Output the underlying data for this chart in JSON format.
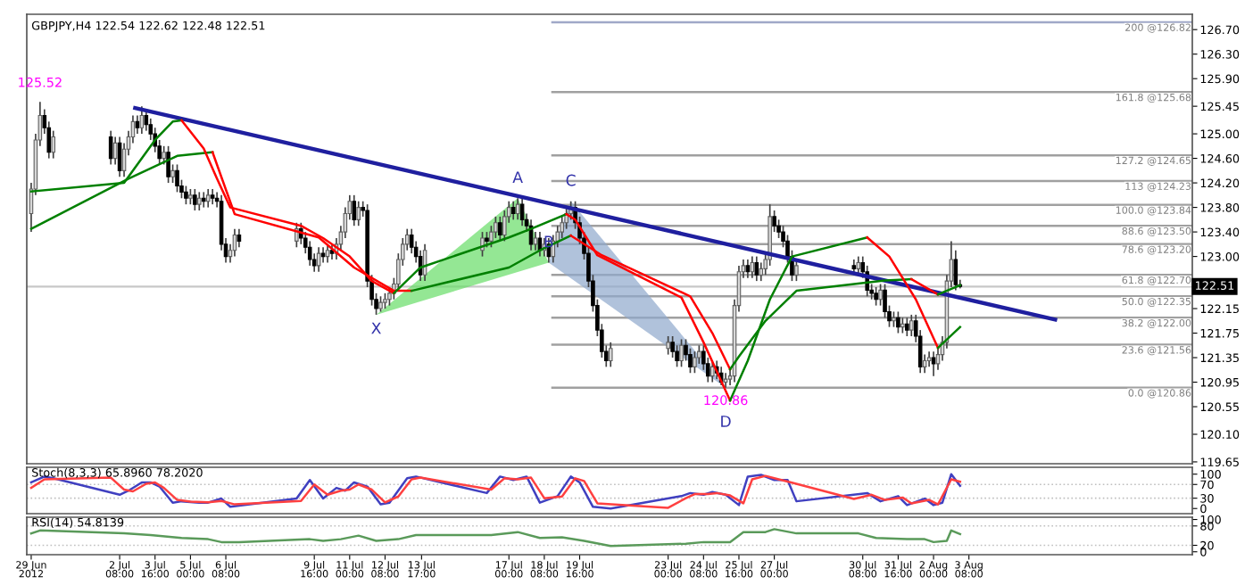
{
  "chart_data": [
    {
      "type": "candlestick",
      "title": "GBPJPY,H4 122.54 122.62 122.48 122.51",
      "x": [
        "2012-06-29T00:00",
        "2012-06-29T04:00",
        "2012-06-29T08:00",
        "2012-06-29T12:00",
        "2012-06-29T16:00",
        "2012-06-29T20:00",
        "2012-07-02T00:00",
        "2012-07-02T04:00",
        "2012-07-02T08:00",
        "2012-07-02T12:00",
        "2012-07-02T16:00",
        "2012-07-02T20:00",
        "2012-07-03T00:00",
        "2012-07-03T04:00",
        "2012-07-03T08:00",
        "2012-07-03T12:00",
        "2012-07-03T16:00",
        "2012-07-03T20:00",
        "2012-07-04T00:00",
        "2012-07-04T04:00",
        "2012-07-04T08:00",
        "2012-07-04T12:00",
        "2012-07-04T16:00",
        "2012-07-04T20:00",
        "2012-07-05T00:00",
        "2012-07-05T04:00",
        "2012-07-05T08:00",
        "2012-07-05T12:00",
        "2012-07-05T16:00",
        "2012-07-05T20:00",
        "2012-07-06T00:00",
        "2012-07-06T04:00",
        "2012-07-06T08:00",
        "2012-07-06T12:00",
        "2012-07-06T16:00",
        "2012-07-06T20:00",
        "2012-07-09T00:00",
        "2012-07-09T04:00",
        "2012-07-09T08:00",
        "2012-07-09T12:00",
        "2012-07-09T16:00",
        "2012-07-09T20:00",
        "2012-07-10T00:00",
        "2012-07-10T04:00",
        "2012-07-10T08:00",
        "2012-07-10T12:00",
        "2012-07-10T16:00",
        "2012-07-10T20:00",
        "2012-07-11T00:00",
        "2012-07-11T04:00",
        "2012-07-11T08:00",
        "2012-07-11T12:00",
        "2012-07-11T16:00",
        "2012-07-11T20:00",
        "2012-07-12T00:00",
        "2012-07-12T04:00",
        "2012-07-12T08:00",
        "2012-07-12T12:00",
        "2012-07-12T16:00",
        "2012-07-12T20:00",
        "2012-07-13T00:00",
        "2012-07-13T04:00",
        "2012-07-13T08:00",
        "2012-07-13T12:00",
        "2012-07-13T16:00",
        "2012-07-13T20:00",
        "2012-07-16T00:00",
        "2012-07-16T04:00",
        "2012-07-16T08:00",
        "2012-07-16T12:00",
        "2012-07-16T16:00",
        "2012-07-16T20:00",
        "2012-07-17T00:00",
        "2012-07-17T04:00",
        "2012-07-17T08:00",
        "2012-07-17T12:00",
        "2012-07-17T16:00",
        "2012-07-17T20:00",
        "2012-07-18T00:00",
        "2012-07-18T04:00",
        "2012-07-18T08:00",
        "2012-07-18T12:00",
        "2012-07-18T16:00",
        "2012-07-18T20:00",
        "2012-07-19T00:00",
        "2012-07-19T04:00",
        "2012-07-19T08:00",
        "2012-07-19T12:00",
        "2012-07-19T16:00",
        "2012-07-19T20:00",
        "2012-07-20T00:00",
        "2012-07-20T04:00",
        "2012-07-20T08:00",
        "2012-07-20T12:00",
        "2012-07-20T16:00",
        "2012-07-20T20:00",
        "2012-07-23T00:00",
        "2012-07-23T04:00",
        "2012-07-23T08:00",
        "2012-07-23T12:00",
        "2012-07-23T16:00",
        "2012-07-23T20:00",
        "2012-07-24T00:00",
        "2012-07-24T04:00",
        "2012-07-24T08:00",
        "2012-07-24T12:00",
        "2012-07-24T16:00",
        "2012-07-24T20:00",
        "2012-07-25T00:00",
        "2012-07-25T04:00",
        "2012-07-25T08:00",
        "2012-07-25T12:00",
        "2012-07-25T16:00",
        "2012-07-25T20:00",
        "2012-07-26T00:00",
        "2012-07-26T04:00",
        "2012-07-26T08:00",
        "2012-07-26T12:00",
        "2012-07-26T16:00",
        "2012-07-26T20:00",
        "2012-07-27T00:00",
        "2012-07-27T04:00",
        "2012-07-27T08:00",
        "2012-07-27T12:00",
        "2012-07-27T16:00",
        "2012-07-27T20:00",
        "2012-07-30T00:00",
        "2012-07-30T04:00",
        "2012-07-30T08:00",
        "2012-07-30T12:00",
        "2012-07-30T16:00",
        "2012-07-30T20:00",
        "2012-07-31T00:00",
        "2012-07-31T04:00",
        "2012-07-31T08:00",
        "2012-07-31T12:00",
        "2012-07-31T16:00",
        "2012-07-31T20:00",
        "2012-08-01T00:00",
        "2012-08-01T04:00",
        "2012-08-01T08:00",
        "2012-08-01T12:00",
        "2012-08-01T16:00",
        "2012-08-01T20:00",
        "2012-08-02T00:00",
        "2012-08-02T04:00",
        "2012-08-02T08:00",
        "2012-08-02T12:00",
        "2012-08-02T16:00",
        "2012-08-02T20:00",
        "2012-08-03T00:00"
      ],
      "ohlc": [
        [
          123.7,
          124.2,
          123.4,
          124.1
        ],
        [
          124.1,
          125.0,
          124.0,
          124.9
        ],
        [
          124.9,
          125.52,
          124.8,
          125.3
        ],
        [
          125.3,
          125.4,
          125.0,
          125.1
        ],
        [
          125.1,
          125.2,
          124.6,
          124.7
        ],
        [
          124.7,
          125.05,
          124.6,
          124.95
        ],
        [
          124.95,
          125.05,
          124.5,
          124.6
        ],
        [
          124.6,
          124.95,
          124.5,
          124.85
        ],
        [
          124.85,
          124.95,
          124.3,
          124.4
        ],
        [
          124.4,
          124.85,
          124.3,
          124.75
        ],
        [
          124.75,
          125.05,
          124.65,
          124.95
        ],
        [
          124.95,
          125.3,
          124.85,
          125.2
        ],
        [
          125.2,
          125.3,
          125.0,
          125.1
        ],
        [
          125.1,
          125.45,
          125.0,
          125.3
        ],
        [
          125.3,
          125.4,
          125.05,
          125.15
        ],
        [
          125.15,
          125.25,
          124.9,
          125.0
        ],
        [
          125.0,
          125.1,
          124.7,
          124.8
        ],
        [
          124.8,
          124.9,
          124.5,
          124.6
        ],
        [
          124.6,
          124.8,
          124.5,
          124.7
        ],
        [
          124.7,
          124.8,
          124.2,
          124.3
        ],
        [
          124.3,
          124.5,
          124.2,
          124.4
        ],
        [
          124.4,
          124.5,
          124.05,
          124.15
        ],
        [
          124.15,
          124.25,
          123.95,
          124.05
        ],
        [
          124.05,
          124.15,
          123.85,
          123.95
        ],
        [
          123.95,
          124.1,
          123.85,
          124.0
        ],
        [
          124.0,
          124.1,
          123.75,
          123.85
        ],
        [
          123.85,
          124.05,
          123.75,
          123.95
        ],
        [
          123.95,
          124.05,
          123.8,
          123.9
        ],
        [
          123.9,
          124.1,
          123.8,
          124.0
        ],
        [
          124.0,
          124.1,
          123.85,
          123.95
        ],
        [
          123.95,
          124.05,
          123.8,
          123.9
        ],
        [
          123.9,
          124.0,
          123.1,
          123.2
        ],
        [
          123.2,
          123.3,
          122.9,
          123.0
        ],
        [
          123.0,
          123.2,
          122.9,
          123.1
        ],
        [
          123.1,
          123.45,
          123.0,
          123.35
        ],
        [
          123.35,
          123.45,
          123.15,
          123.25
        ],
        [
          123.25,
          123.55,
          123.15,
          123.45
        ],
        [
          123.45,
          123.55,
          123.2,
          123.3
        ],
        [
          123.3,
          123.4,
          123.05,
          123.15
        ],
        [
          123.15,
          123.25,
          122.85,
          122.95
        ],
        [
          122.95,
          123.05,
          122.75,
          122.85
        ],
        [
          122.85,
          123.15,
          122.75,
          123.05
        ],
        [
          123.05,
          123.15,
          122.9,
          123.0
        ],
        [
          123.0,
          123.2,
          122.9,
          123.1
        ],
        [
          123.1,
          123.2,
          122.95,
          123.05
        ],
        [
          123.05,
          123.3,
          122.95,
          123.2
        ],
        [
          123.2,
          123.5,
          123.1,
          123.4
        ],
        [
          123.4,
          123.8,
          123.3,
          123.7
        ],
        [
          123.7,
          124.0,
          123.6,
          123.9
        ],
        [
          123.9,
          124.0,
          123.5,
          123.6
        ],
        [
          123.6,
          123.9,
          123.5,
          123.8
        ],
        [
          123.8,
          123.9,
          123.65,
          123.75
        ],
        [
          123.75,
          123.85,
          122.5,
          122.6
        ],
        [
          122.6,
          122.7,
          122.2,
          122.3
        ],
        [
          122.3,
          122.4,
          122.05,
          122.15
        ],
        [
          122.15,
          122.35,
          122.1,
          122.25
        ],
        [
          122.25,
          122.4,
          122.15,
          122.3
        ],
        [
          122.3,
          122.5,
          122.2,
          122.4
        ],
        [
          122.4,
          122.65,
          122.3,
          122.55
        ],
        [
          122.55,
          123.05,
          122.45,
          122.95
        ],
        [
          122.95,
          123.3,
          122.85,
          123.2
        ],
        [
          123.2,
          123.45,
          123.1,
          123.35
        ],
        [
          123.35,
          123.45,
          123.05,
          123.15
        ],
        [
          123.15,
          123.25,
          122.9,
          123.0
        ],
        [
          123.0,
          123.1,
          122.6,
          122.7
        ],
        [
          122.7,
          123.2,
          122.6,
          123.1
        ],
        [
          123.1,
          123.4,
          123.0,
          123.3
        ],
        [
          123.3,
          123.4,
          123.15,
          123.25
        ],
        [
          123.25,
          123.5,
          123.15,
          123.4
        ],
        [
          123.4,
          123.65,
          123.3,
          123.55
        ],
        [
          123.55,
          123.65,
          123.25,
          123.35
        ],
        [
          123.35,
          123.75,
          123.25,
          123.65
        ],
        [
          123.65,
          123.9,
          123.55,
          123.8
        ],
        [
          123.8,
          123.9,
          123.6,
          123.7
        ],
        [
          123.7,
          123.95,
          123.6,
          123.85
        ],
        [
          123.85,
          123.95,
          123.5,
          123.6
        ],
        [
          123.6,
          123.7,
          123.4,
          123.5
        ],
        [
          123.5,
          123.6,
          123.1,
          123.2
        ],
        [
          123.2,
          123.4,
          123.1,
          123.3
        ],
        [
          123.3,
          123.4,
          123.0,
          123.1
        ],
        [
          123.1,
          123.3,
          123.0,
          123.2
        ],
        [
          123.2,
          123.3,
          122.9,
          123.0
        ],
        [
          123.0,
          123.35,
          122.9,
          123.25
        ],
        [
          123.25,
          123.5,
          123.15,
          123.4
        ],
        [
          123.4,
          123.65,
          123.3,
          123.55
        ],
        [
          123.55,
          123.8,
          123.45,
          123.7
        ],
        [
          123.7,
          123.9,
          123.6,
          123.8
        ],
        [
          123.8,
          123.9,
          123.45,
          123.55
        ],
        [
          123.55,
          123.65,
          123.2,
          123.3
        ],
        [
          123.3,
          123.4,
          122.95,
          123.05
        ],
        [
          123.05,
          123.15,
          122.5,
          122.6
        ],
        [
          122.6,
          122.7,
          122.1,
          122.2
        ],
        [
          122.2,
          122.3,
          121.7,
          121.8
        ],
        [
          121.8,
          121.9,
          121.35,
          121.45
        ],
        [
          121.45,
          121.55,
          121.2,
          121.3
        ],
        [
          121.3,
          121.6,
          121.2,
          121.5
        ],
        [
          121.5,
          121.7,
          121.4,
          121.6
        ],
        [
          121.6,
          121.7,
          121.35,
          121.45
        ],
        [
          121.45,
          121.55,
          121.2,
          121.3
        ],
        [
          121.3,
          121.65,
          121.2,
          121.55
        ],
        [
          121.55,
          121.65,
          121.3,
          121.4
        ],
        [
          121.4,
          121.5,
          121.1,
          121.2
        ],
        [
          121.2,
          121.45,
          121.1,
          121.35
        ],
        [
          121.35,
          121.55,
          121.25,
          121.45
        ],
        [
          121.45,
          121.55,
          121.15,
          121.25
        ],
        [
          121.25,
          121.35,
          120.95,
          121.05
        ],
        [
          121.05,
          121.3,
          120.95,
          121.2
        ],
        [
          121.2,
          121.3,
          121.0,
          121.1
        ],
        [
          121.1,
          121.2,
          120.9,
          120.95
        ],
        [
          120.95,
          121.1,
          120.86,
          121.0
        ],
        [
          121.0,
          121.15,
          120.9,
          121.05
        ],
        [
          121.05,
          122.3,
          120.95,
          122.2
        ],
        [
          122.2,
          122.85,
          122.1,
          122.75
        ],
        [
          122.75,
          122.95,
          122.65,
          122.85
        ],
        [
          122.85,
          122.95,
          122.65,
          122.75
        ],
        [
          122.75,
          123.0,
          122.65,
          122.9
        ],
        [
          122.9,
          123.0,
          122.6,
          122.7
        ],
        [
          122.7,
          122.9,
          122.6,
          122.8
        ],
        [
          122.8,
          123.05,
          122.7,
          122.95
        ],
        [
          122.95,
          123.85,
          122.85,
          123.65
        ],
        [
          123.65,
          123.75,
          123.4,
          123.5
        ],
        [
          123.5,
          123.6,
          123.3,
          123.4
        ],
        [
          123.4,
          123.5,
          123.15,
          123.25
        ],
        [
          123.25,
          123.35,
          122.9,
          123.0
        ],
        [
          123.0,
          123.1,
          122.6,
          122.7
        ],
        [
          122.7,
          122.95,
          122.6,
          122.85
        ],
        [
          122.85,
          122.95,
          122.7,
          122.8
        ],
        [
          122.8,
          123.0,
          122.7,
          122.9
        ],
        [
          122.9,
          123.0,
          122.65,
          122.75
        ],
        [
          122.75,
          122.85,
          122.35,
          122.45
        ],
        [
          122.45,
          122.55,
          122.3,
          122.4
        ],
        [
          122.4,
          122.5,
          122.2,
          122.3
        ],
        [
          122.3,
          122.55,
          122.2,
          122.45
        ],
        [
          122.45,
          122.55,
          122.0,
          122.1
        ],
        [
          122.1,
          122.2,
          121.85,
          121.95
        ],
        [
          121.95,
          122.1,
          121.85,
          122.0
        ],
        [
          122.0,
          122.1,
          121.75,
          121.85
        ],
        [
          121.85,
          122.0,
          121.75,
          121.9
        ],
        [
          121.9,
          122.0,
          121.7,
          121.8
        ],
        [
          121.8,
          122.05,
          121.7,
          121.95
        ],
        [
          121.95,
          122.05,
          121.6,
          121.7
        ],
        [
          121.7,
          121.8,
          121.1,
          121.2
        ],
        [
          121.2,
          121.4,
          121.1,
          121.3
        ],
        [
          121.3,
          121.45,
          121.2,
          121.35
        ],
        [
          121.35,
          121.45,
          121.05,
          121.25
        ],
        [
          121.25,
          121.5,
          121.15,
          121.4
        ],
        [
          121.4,
          121.7,
          121.3,
          121.6
        ],
        [
          121.6,
          122.7,
          121.5,
          122.6
        ],
        [
          122.6,
          123.25,
          122.5,
          122.95
        ],
        [
          122.95,
          123.1,
          122.45,
          122.54
        ],
        [
          122.54,
          122.62,
          122.48,
          122.51
        ]
      ],
      "series": [
        {
          "type": "line",
          "color": "#1f1f9f",
          "x": [
            "2012-07-02T22:00",
            "2012-08-06T14:00"
          ],
          "values": [
            125.42,
            121.97
          ]
        },
        {
          "type": "line",
          "color": "#008000",
          "x": [
            "2012-06-29T00:00",
            "2012-07-02T16:00",
            "2012-07-04T12:00",
            "2012-07-05T20:00"
          ],
          "values": [
            123.45,
            124.27,
            124.64,
            124.7
          ]
        },
        {
          "type": "line",
          "color": "#ff0000",
          "x": [
            "2012-07-05T20:00",
            "2012-07-06T16:00",
            "2012-07-09T20:00",
            "2012-07-11T04:00",
            "2012-07-12T16:00",
            "2012-07-13T08:00"
          ],
          "values": [
            124.7,
            123.69,
            123.31,
            122.82,
            122.44,
            122.44
          ]
        },
        {
          "type": "line",
          "color": "#008000",
          "x": [
            "2012-07-13T08:00",
            "2012-07-17T00:00",
            "2012-07-18T04:00",
            "2012-07-19T08:00"
          ],
          "values": [
            122.44,
            122.82,
            123.1,
            123.34
          ]
        },
        {
          "type": "line",
          "color": "#ff0000",
          "x": [
            "2012-07-19T08:00",
            "2012-07-20T12:00",
            "2012-07-23T20:00",
            "2012-07-24T16:00",
            "2012-07-25T08:00"
          ],
          "values": [
            123.34,
            123.02,
            122.35,
            121.75,
            121.16
          ]
        },
        {
          "type": "line",
          "color": "#008000",
          "x": [
            "2012-07-25T08:00",
            "2012-07-25T16:00",
            "2012-07-26T16:00",
            "2012-07-27T20:00",
            "2012-07-31T04:00",
            "2012-08-01T04:00"
          ],
          "values": [
            121.16,
            121.37,
            121.95,
            122.44,
            122.61,
            122.63
          ]
        },
        {
          "type": "line",
          "color": "#ff0000",
          "x": [
            "2012-08-01T04:00",
            "2012-08-02T04:00"
          ],
          "values": [
            122.63,
            122.38
          ]
        },
        {
          "type": "line",
          "color": "#008000",
          "x": [
            "2012-08-02T04:00",
            "2012-08-03T00:00"
          ],
          "values": [
            122.38,
            122.53
          ]
        },
        {
          "type": "line",
          "color": "#008000",
          "x": [
            "2012-06-29T00:00",
            "2012-07-02T12:00",
            "2012-07-03T16:00",
            "2012-07-04T08:00",
            "2012-07-04T16:00"
          ],
          "values": [
            124.06,
            124.2,
            124.9,
            125.2,
            125.22
          ]
        },
        {
          "type": "line",
          "color": "#ff0000",
          "x": [
            "2012-07-04T16:00",
            "2012-07-05T12:00",
            "2012-07-06T00:00",
            "2012-07-06T12:00",
            "2012-07-09T04:00",
            "2012-07-10T00:00",
            "2012-07-11T00:00",
            "2012-07-11T20:00",
            "2012-07-12T16:00"
          ],
          "values": [
            125.22,
            124.76,
            124.27,
            123.8,
            123.5,
            123.3,
            123.0,
            122.6,
            122.4
          ]
        },
        {
          "type": "line",
          "color": "#008000",
          "x": [
            "2012-07-12T16:00",
            "2012-07-13T16:00",
            "2012-07-17T00:00",
            "2012-07-17T20:00",
            "2012-07-19T04:00"
          ],
          "values": [
            122.4,
            122.82,
            123.31,
            123.45,
            123.69
          ]
        },
        {
          "type": "line",
          "color": "#ff0000",
          "x": [
            "2012-07-19T04:00",
            "2012-07-19T12:00",
            "2012-07-20T08:00",
            "2012-07-23T12:00",
            "2012-07-24T08:00",
            "2012-07-25T08:00"
          ],
          "values": [
            123.69,
            123.6,
            123.02,
            122.33,
            121.6,
            120.65
          ]
        },
        {
          "type": "line",
          "color": "#008000",
          "x": [
            "2012-07-25T08:00",
            "2012-07-26T00:00",
            "2012-07-26T20:00",
            "2012-07-27T16:00",
            "2012-07-30T12:00"
          ],
          "values": [
            120.65,
            121.3,
            122.3,
            123.0,
            123.31
          ]
        },
        {
          "type": "line",
          "color": "#ff0000",
          "x": [
            "2012-07-30T12:00",
            "2012-07-31T08:00",
            "2012-08-01T08:00",
            "2012-08-02T04:00"
          ],
          "values": [
            123.31,
            123.0,
            122.3,
            121.51
          ]
        },
        {
          "type": "line",
          "color": "#008000",
          "x": [
            "2012-08-02T04:00",
            "2012-08-03T00:00"
          ],
          "values": [
            121.51,
            121.85
          ]
        }
      ],
      "annotations": [
        {
          "text": "125.52",
          "x": "2012-06-29T08:00",
          "y": 125.52
        },
        {
          "text": "120.86",
          "x": "2012-07-25T04:00",
          "y": 120.86
        },
        {
          "text": "X",
          "x": "2012-07-12T00:00",
          "y": 122.05
        },
        {
          "text": "A",
          "x": "2012-07-17T08:00",
          "y": 123.95
        },
        {
          "text": "B",
          "x": "2012-07-18T12:00",
          "y": 122.9
        },
        {
          "text": "C",
          "x": "2012-07-19T08:00",
          "y": 123.9
        },
        {
          "text": "D",
          "x": "2012-07-25T04:00",
          "y": 120.86
        }
      ],
      "ref_lines": [
        {
          "axis": "y",
          "value": 126.82,
          "label": "200 @126.82",
          "color": "#a0a8c8"
        },
        {
          "axis": "y",
          "value": 125.68,
          "label": "161.8 @125.68",
          "color": "#a0a0a0"
        },
        {
          "axis": "y",
          "value": 124.65,
          "label": "127.2 @124.65",
          "color": "#a0a0a0"
        },
        {
          "axis": "y",
          "value": 124.23,
          "label": "113 @124.23",
          "color": "#a0a0a0"
        },
        {
          "axis": "y",
          "value": 123.84,
          "label": "100.0 @123.84",
          "color": "#a0a0a0"
        },
        {
          "axis": "y",
          "value": 123.5,
          "label": "88.6 @123.50",
          "color": "#a0a0a0"
        },
        {
          "axis": "y",
          "value": 123.2,
          "label": "78.6 @123.20",
          "color": "#a0a0a0"
        },
        {
          "axis": "y",
          "value": 122.7,
          "label": "61.8 @122.70",
          "color": "#a0a0a0"
        },
        {
          "axis": "y",
          "value": 122.35,
          "label": "50.0 @122.35",
          "color": "#a0a0a0"
        },
        {
          "axis": "y",
          "value": 122.0,
          "label": "38.2 @122.00",
          "color": "#a0a0a0"
        },
        {
          "axis": "y",
          "value": 121.56,
          "label": "23.6 @121.56",
          "color": "#a0a0a0"
        },
        {
          "axis": "y",
          "value": 120.86,
          "label": "0.0 @120.86",
          "color": "#a0a0a0"
        },
        {
          "axis": "y",
          "value": 122.51,
          "label": "122.51",
          "color": "#c8c8c8"
        }
      ],
      "xlim": [
        "2012-06-28T20:00",
        "2012-08-11T18:00"
      ],
      "ylim": [
        119.62,
        126.95
      ],
      "yticks": [
        {
          "value": 119.65,
          "label": "119.65"
        },
        {
          "value": 120.1,
          "label": "120.10"
        },
        {
          "value": 120.55,
          "label": "120.55"
        },
        {
          "value": 120.95,
          "label": "120.95"
        },
        {
          "value": 121.35,
          "label": "121.35"
        },
        {
          "value": 121.75,
          "label": "121.75"
        },
        {
          "value": 122.15,
          "label": "122.15"
        },
        {
          "value": 123.0,
          "label": "123.00"
        },
        {
          "value": 123.4,
          "label": "123.40"
        },
        {
          "value": 123.8,
          "label": "123.80"
        },
        {
          "value": 124.2,
          "label": "124.20"
        },
        {
          "value": 124.6,
          "label": "124.60"
        },
        {
          "value": 125.0,
          "label": "125.00"
        },
        {
          "value": 125.45,
          "label": "125.45"
        },
        {
          "value": 125.9,
          "label": "125.90"
        },
        {
          "value": 126.3,
          "label": "126.30"
        },
        {
          "value": 126.7,
          "label": "126.70"
        }
      ],
      "tick_labels": "y"
    },
    {
      "type": "line",
      "title": "Stoch(8,3,3) 65.8960 78.2020",
      "series": [
        {
          "color": "#4040c0",
          "x": [
            "2012-06-29T00:00",
            "2012-06-29T12:00",
            "2012-06-29T20:00",
            "2012-07-02T08:00",
            "2012-07-02T16:00",
            "2012-07-03T04:00",
            "2012-07-03T12:00",
            "2012-07-03T20:00",
            "2012-07-04T08:00",
            "2012-07-04T16:00",
            "2012-07-05T08:00",
            "2012-07-05T16:00",
            "2012-07-06T04:00",
            "2012-07-06T12:00",
            "2012-07-09T00:00",
            "2012-07-09T12:00",
            "2012-07-10T00:00",
            "2012-07-10T12:00",
            "2012-07-10T20:00",
            "2012-07-11T04:00",
            "2012-07-11T16:00",
            "2012-07-12T04:00",
            "2012-07-12T12:00",
            "2012-07-13T04:00",
            "2012-07-13T12:00",
            "2012-07-16T04:00",
            "2012-07-16T16:00",
            "2012-07-17T04:00",
            "2012-07-17T16:00",
            "2012-07-18T04:00",
            "2012-07-18T20:00",
            "2012-07-19T08:00",
            "2012-07-19T16:00",
            "2012-07-20T04:00",
            "2012-07-20T20:00",
            "2012-07-23T12:00",
            "2012-07-23T20:00",
            "2012-07-24T08:00",
            "2012-07-24T16:00",
            "2012-07-25T04:00",
            "2012-07-25T16:00",
            "2012-07-26T00:00",
            "2012-07-26T12:00",
            "2012-07-27T00:00",
            "2012-07-27T12:00",
            "2012-07-27T20:00",
            "2012-07-30T12:00",
            "2012-07-31T00:00",
            "2012-07-31T16:00",
            "2012-08-01T00:00",
            "2012-08-01T16:00",
            "2012-08-02T00:00",
            "2012-08-02T08:00",
            "2012-08-02T16:00",
            "2012-08-03T00:00"
          ],
          "values": [
            76,
            93,
            88,
            40,
            52,
            76,
            76,
            64,
            17,
            21,
            17,
            17,
            29,
            5,
            29,
            83,
            29,
            60,
            52,
            76,
            64,
            12,
            17,
            88,
            93,
            45,
            93,
            83,
            93,
            17,
            36,
            93,
            76,
            5,
            0,
            36,
            45,
            40,
            48,
            40,
            10,
            93,
            98,
            83,
            83,
            21,
            45,
            21,
            36,
            10,
            29,
            10,
            17,
            100,
            66
          ]
        },
        {
          "color": "#ff4040",
          "x": [
            "2012-06-29T00:00",
            "2012-06-29T12:00",
            "2012-07-02T00:00",
            "2012-07-02T12:00",
            "2012-07-02T20:00",
            "2012-07-03T08:00",
            "2012-07-03T16:00",
            "2012-07-04T00:00",
            "2012-07-04T12:00",
            "2012-07-05T00:00",
            "2012-07-05T16:00",
            "2012-07-06T04:00",
            "2012-07-06T16:00",
            "2012-07-09T04:00",
            "2012-07-09T16:00",
            "2012-07-10T04:00",
            "2012-07-10T16:00",
            "2012-07-11T00:00",
            "2012-07-11T08:00",
            "2012-07-11T20:00",
            "2012-07-12T08:00",
            "2012-07-12T20:00",
            "2012-07-13T08:00",
            "2012-07-13T16:00",
            "2012-07-16T08:00",
            "2012-07-16T20:00",
            "2012-07-17T08:00",
            "2012-07-17T20:00",
            "2012-07-18T08:00",
            "2012-07-19T00:00",
            "2012-07-19T12:00",
            "2012-07-19T20:00",
            "2012-07-20T08:00",
            "2012-07-23T00:00",
            "2012-07-23T16:00",
            "2012-07-24T00:00",
            "2012-07-24T12:00",
            "2012-07-24T20:00",
            "2012-07-25T08:00",
            "2012-07-25T20:00",
            "2012-07-26T04:00",
            "2012-07-26T16:00",
            "2012-07-27T04:00",
            "2012-07-27T16:00",
            "2012-07-30T00:00",
            "2012-07-30T16:00",
            "2012-07-31T04:00",
            "2012-07-31T20:00",
            "2012-08-01T04:00",
            "2012-08-01T20:00",
            "2012-08-02T04:00",
            "2012-08-02T16:00",
            "2012-08-03T00:00"
          ],
          "values": [
            60,
            85,
            90,
            55,
            50,
            72,
            76,
            60,
            25,
            20,
            18,
            22,
            12,
            22,
            70,
            40,
            52,
            55,
            70,
            55,
            18,
            35,
            85,
            90,
            55,
            88,
            85,
            90,
            30,
            35,
            88,
            80,
            15,
            2,
            30,
            42,
            42,
            45,
            38,
            15,
            85,
            95,
            85,
            75,
            28,
            40,
            25,
            32,
            15,
            25,
            12,
            85,
            78
          ]
        }
      ],
      "ref_lines": [
        {
          "axis": "y",
          "value": 70,
          "color": "#c0c0c0",
          "line_style": "dotted"
        },
        {
          "axis": "y",
          "value": 30,
          "color": "#c0c0c0",
          "line_style": "dotted"
        }
      ],
      "xlim": [
        "2012-06-28T20:00",
        "2012-08-11T18:00"
      ],
      "ylim": [
        -15,
        120
      ],
      "yticks": [
        0,
        30,
        70,
        100
      ],
      "tick_labels": "y"
    },
    {
      "type": "line",
      "title": "RSI(14) 54.8139",
      "series": [
        {
          "color": "#5a9a5a",
          "x": [
            "2012-06-29T00:00",
            "2012-06-29T08:00",
            "2012-07-02T12:00",
            "2012-07-03T12:00",
            "2012-07-04T16:00",
            "2012-07-05T16:00",
            "2012-07-06T04:00",
            "2012-07-06T20:00",
            "2012-07-09T12:00",
            "2012-07-10T00:00",
            "2012-07-10T16:00",
            "2012-07-11T08:00",
            "2012-07-12T00:00",
            "2012-07-12T20:00",
            "2012-07-13T12:00",
            "2012-07-16T08:00",
            "2012-07-17T08:00",
            "2012-07-18T04:00",
            "2012-07-19T00:00",
            "2012-07-19T20:00",
            "2012-07-20T20:00",
            "2012-07-23T16:00",
            "2012-07-24T08:00",
            "2012-07-25T00:00",
            "2012-07-25T08:00",
            "2012-07-25T20:00",
            "2012-07-26T16:00",
            "2012-07-27T00:00",
            "2012-07-27T20:00",
            "2012-07-30T04:00",
            "2012-07-30T20:00",
            "2012-08-01T00:00",
            "2012-08-01T16:00",
            "2012-08-02T00:00",
            "2012-08-02T12:00",
            "2012-08-02T16:00",
            "2012-08-03T00:00"
          ],
          "values": [
            57,
            66,
            57,
            52,
            43,
            39,
            30,
            30,
            39,
            34,
            39,
            50,
            34,
            39,
            52,
            52,
            61,
            43,
            45,
            34,
            18,
            25,
            30,
            30,
            30,
            61,
            61,
            70,
            57,
            57,
            43,
            39,
            39,
            30,
            34,
            66,
            55
          ]
        }
      ],
      "ref_lines": [
        {
          "axis": "y",
          "value": 80,
          "color": "#c0c0c0",
          "line_style": "dotted"
        },
        {
          "axis": "y",
          "value": 20,
          "color": "#c0c0c0",
          "line_style": "dotted"
        }
      ],
      "xlim": [
        "2012-06-28T20:00",
        "2012-08-11T18:00"
      ],
      "ylim": [
        -9,
        107
      ],
      "yticks": [
        0,
        20,
        80,
        100
      ],
      "xticks": [
        {
          "value": "2012-06-29T00:00",
          "label": "29 Jun 2012"
        },
        {
          "value": "2012-07-02T08:00",
          "label": "2 Jul 08:00"
        },
        {
          "value": "2012-07-03T16:00",
          "label": "3 Jul 16:00"
        },
        {
          "value": "2012-07-05T00:00",
          "label": "5 Jul 00:00"
        },
        {
          "value": "2012-07-06T08:00",
          "label": "6 Jul 08:00"
        },
        {
          "value": "2012-07-09T16:00",
          "label": "9 Jul 16:00"
        },
        {
          "value": "2012-07-11T00:00",
          "label": "11 Jul 00:00"
        },
        {
          "value": "2012-07-12T08:00",
          "label": "12 Jul 08:00"
        },
        {
          "value": "2012-07-13T17:00",
          "label": "13 Jul 17:00"
        },
        {
          "value": "2012-07-17T00:00",
          "label": "17 Jul 00:00"
        },
        {
          "value": "2012-07-18T08:00",
          "label": "18 Jul 08:00"
        },
        {
          "value": "2012-07-19T16:00",
          "label": "19 Jul 16:00"
        },
        {
          "value": "2012-07-23T00:00",
          "label": "23 Jul 00:00"
        },
        {
          "value": "2012-07-24T08:00",
          "label": "24 Jul 08:00"
        },
        {
          "value": "2012-07-25T16:00",
          "label": "25 Jul 16:00"
        },
        {
          "value": "2012-07-27T00:00",
          "label": "27 Jul 00:00"
        },
        {
          "value": "2012-07-30T08:00",
          "label": "30 Jul 08:00"
        },
        {
          "value": "2012-07-31T16:00",
          "label": "31 Jul 16:00"
        },
        {
          "value": "2012-08-02T00:00",
          "label": "2 Aug 00:00"
        },
        {
          "value": "2012-08-03T08:00",
          "label": "3 Aug 08:00"
        }
      ]
    }
  ]
}
